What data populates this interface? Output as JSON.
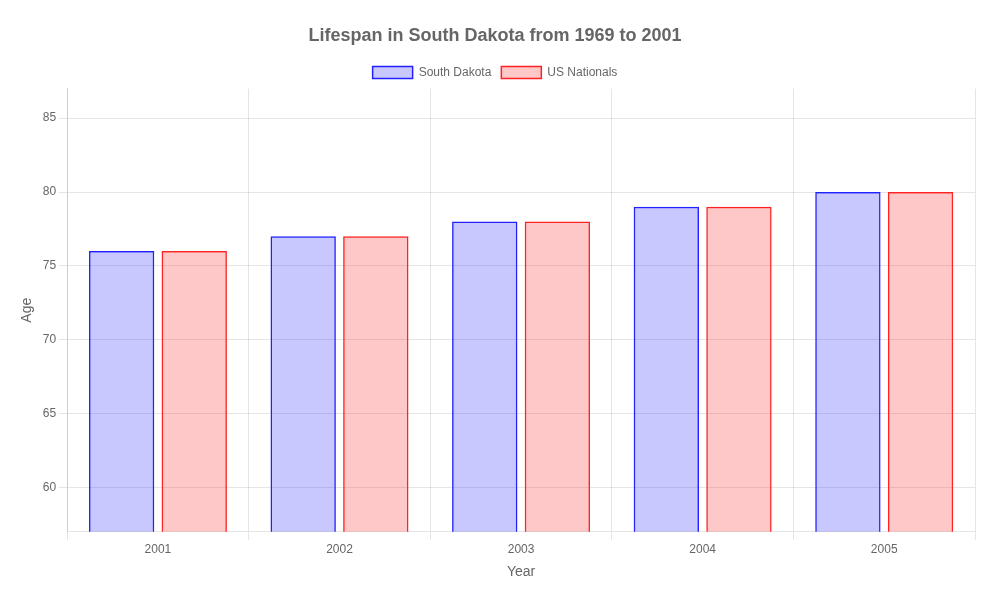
{
  "chart_data": {
    "type": "bar",
    "title": "Lifespan in South Dakota from 1969 to 2001",
    "xlabel": "Year",
    "ylabel": "Age",
    "categories": [
      "2001",
      "2002",
      "2003",
      "2004",
      "2005"
    ],
    "series": [
      {
        "name": "South Dakota",
        "color": "#2222ff",
        "values": [
          76,
          77,
          78,
          79,
          80
        ]
      },
      {
        "name": "US Nationals",
        "color": "#ff2222",
        "values": [
          76,
          77,
          78,
          79,
          80
        ]
      }
    ],
    "ylim": [
      57,
      87
    ],
    "yticks": [
      60,
      65,
      70,
      75,
      80,
      85
    ],
    "grid": true,
    "legend": "top"
  }
}
